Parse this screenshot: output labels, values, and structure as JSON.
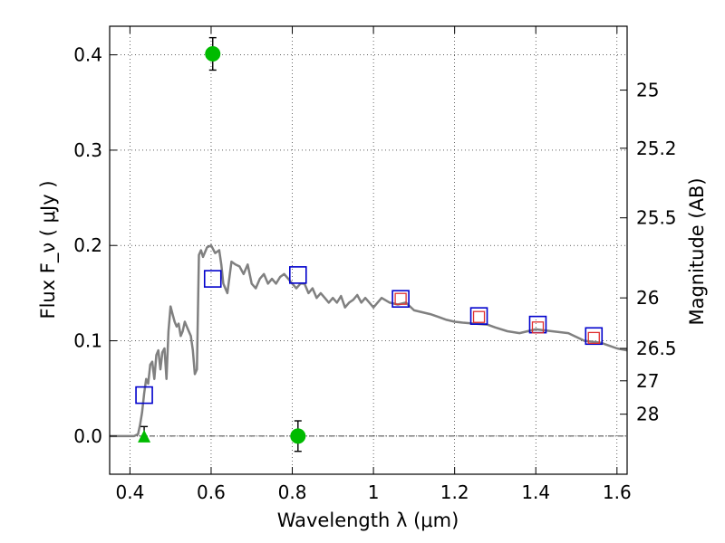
{
  "chart_data": {
    "type": "scatter",
    "xlabel": "Wavelength  λ (μm)",
    "ylabel_left": "Flux  F_ν  ( μJy )",
    "ylabel_right": "Magnitude (AB)",
    "xlim": [
      0.35,
      1.625
    ],
    "ylim": [
      -0.04,
      0.43
    ],
    "grid": true,
    "x_ticks": [
      0.4,
      0.6,
      0.8,
      1.0,
      1.2,
      1.4,
      1.6
    ],
    "x_tick_labels": [
      "0.4",
      "0.6",
      "0.8",
      "1",
      "1.2",
      "1.4",
      "1.6"
    ],
    "y_ticks": [
      0.0,
      0.1,
      0.2,
      0.3,
      0.4
    ],
    "y_tick_labels": [
      "0.0",
      "0.1",
      "0.2",
      "0.3",
      "0.4"
    ],
    "right_ticks": [
      {
        "label": "25",
        "flux": 0.363
      },
      {
        "label": "25.2",
        "flux": 0.302
      },
      {
        "label": "25.5",
        "flux": 0.229
      },
      {
        "label": "26",
        "flux": 0.145
      },
      {
        "label": "26.5",
        "flux": 0.092
      },
      {
        "label": "27",
        "flux": 0.058
      },
      {
        "label": "28",
        "flux": 0.023
      }
    ],
    "zero_line": 0.0,
    "model_spectrum": {
      "color": "#808080",
      "x": [
        0.35,
        0.41,
        0.42,
        0.425,
        0.43,
        0.435,
        0.44,
        0.445,
        0.45,
        0.455,
        0.46,
        0.465,
        0.47,
        0.475,
        0.48,
        0.485,
        0.49,
        0.495,
        0.5,
        0.505,
        0.51,
        0.515,
        0.52,
        0.525,
        0.53,
        0.535,
        0.54,
        0.545,
        0.55,
        0.555,
        0.56,
        0.565,
        0.57,
        0.575,
        0.58,
        0.59,
        0.6,
        0.61,
        0.62,
        0.625,
        0.63,
        0.64,
        0.65,
        0.66,
        0.67,
        0.68,
        0.69,
        0.7,
        0.71,
        0.72,
        0.73,
        0.74,
        0.75,
        0.76,
        0.77,
        0.78,
        0.79,
        0.8,
        0.81,
        0.82,
        0.83,
        0.84,
        0.85,
        0.86,
        0.87,
        0.88,
        0.89,
        0.9,
        0.91,
        0.92,
        0.93,
        0.94,
        0.95,
        0.96,
        0.97,
        0.98,
        0.99,
        1.0,
        1.02,
        1.04,
        1.06,
        1.08,
        1.1,
        1.12,
        1.14,
        1.16,
        1.18,
        1.2,
        1.22,
        1.25,
        1.28,
        1.3,
        1.33,
        1.36,
        1.4,
        1.44,
        1.48,
        1.52,
        1.56,
        1.6,
        1.625
      ],
      "y": [
        0.0,
        0.0,
        0.002,
        0.012,
        0.025,
        0.045,
        0.06,
        0.055,
        0.075,
        0.078,
        0.06,
        0.085,
        0.09,
        0.07,
        0.088,
        0.092,
        0.06,
        0.11,
        0.136,
        0.128,
        0.12,
        0.115,
        0.118,
        0.105,
        0.11,
        0.12,
        0.115,
        0.11,
        0.105,
        0.09,
        0.065,
        0.07,
        0.19,
        0.195,
        0.188,
        0.198,
        0.2,
        0.192,
        0.195,
        0.18,
        0.16,
        0.15,
        0.183,
        0.18,
        0.178,
        0.17,
        0.18,
        0.16,
        0.155,
        0.165,
        0.17,
        0.16,
        0.165,
        0.16,
        0.167,
        0.17,
        0.165,
        0.16,
        0.155,
        0.16,
        0.16,
        0.15,
        0.155,
        0.145,
        0.15,
        0.145,
        0.14,
        0.145,
        0.14,
        0.147,
        0.135,
        0.14,
        0.143,
        0.148,
        0.14,
        0.145,
        0.14,
        0.135,
        0.145,
        0.14,
        0.138,
        0.14,
        0.132,
        0.13,
        0.128,
        0.125,
        0.122,
        0.12,
        0.119,
        0.118,
        0.117,
        0.114,
        0.11,
        0.108,
        0.112,
        0.11,
        0.108,
        0.1,
        0.098,
        0.092,
        0.09
      ]
    },
    "blue_squares": {
      "color": "#0000cc",
      "x": [
        0.435,
        0.604,
        0.814,
        1.067,
        1.26,
        1.405,
        1.543
      ],
      "y": [
        0.043,
        0.165,
        0.169,
        0.144,
        0.126,
        0.117,
        0.105
      ]
    },
    "red_squares": {
      "color": "#e03030",
      "x": [
        1.067,
        1.26,
        1.405,
        1.543
      ],
      "y": [
        0.144,
        0.125,
        0.114,
        0.103
      ]
    },
    "green_points": {
      "color": "#00bb00",
      "x": [
        0.604,
        0.814
      ],
      "y": [
        0.401,
        0.0
      ],
      "yerr": [
        0.017,
        0.016
      ]
    },
    "green_upper_limit": {
      "color": "#00bb00",
      "x": 0.435,
      "y": 0.0,
      "err_top": 0.01
    }
  }
}
